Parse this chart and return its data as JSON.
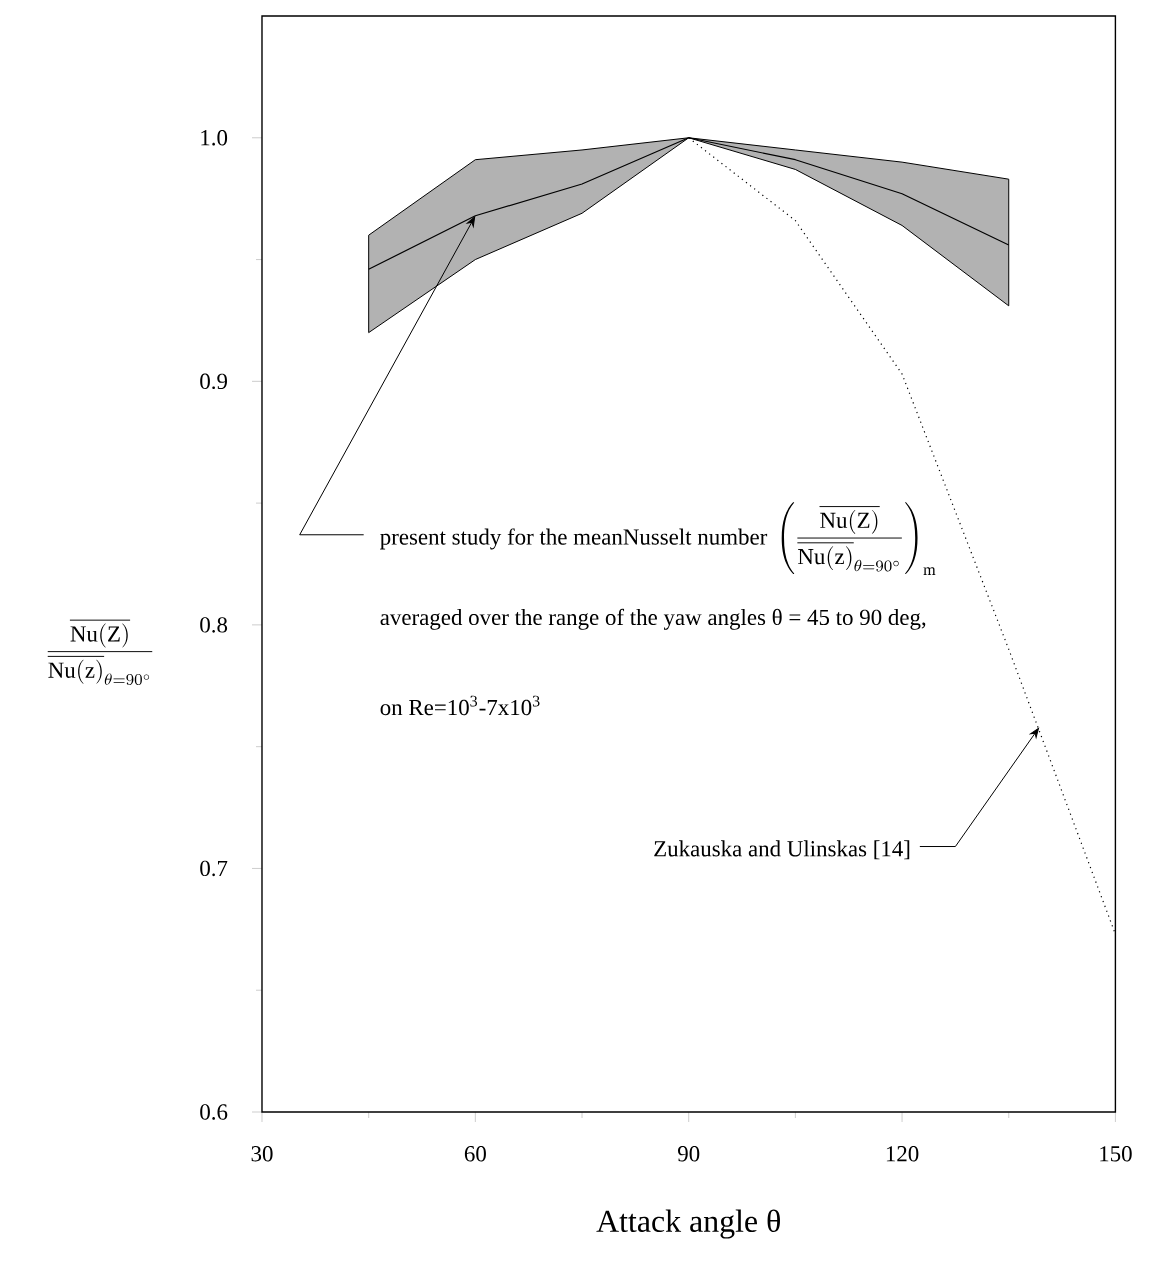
{
  "chart_data": {
    "type": "line",
    "xlabel": "Attack angle θ",
    "ylabel": "\\frac{\\overline{\\mathrm{Nu(Z)}}}{\\overline{\\mathrm{Nu(z)}}_{\\theta=90^\\circ}}",
    "xlim": [
      30,
      150
    ],
    "ylim": [
      0.6,
      1.05
    ],
    "xticks": [
      30,
      60,
      90,
      120,
      150
    ],
    "yticks": [
      0.6,
      0.7,
      0.8,
      0.9,
      {
        "value": 1.0,
        "label": "1.0"
      }
    ],
    "series": [
      {
        "x": [
          45,
          60,
          75,
          90,
          105,
          120,
          135
        ],
        "values": [
          0.946,
          0.968,
          0.981,
          1.0,
          0.991,
          0.977,
          0.956
        ],
        "lower": [
          0.92,
          0.95,
          0.969,
          1.0,
          0.987,
          0.964,
          0.931
        ],
        "upper": [
          0.96,
          0.991,
          0.995,
          1.0,
          0.995,
          0.99,
          0.983
        ],
        "color": "#000000",
        "line_style": "solid"
      },
      {
        "x": [
          90,
          105,
          120,
          135,
          150
        ],
        "values": [
          1.0,
          0.966,
          0.903,
          0.79,
          0.673
        ],
        "color": "#000000",
        "line_style": "dotted"
      }
    ],
    "annotations": [
      {
        "text": "present study for the meanNusselt number",
        "x": 60,
        "y": 0.968
      },
      "\\left(\\frac{\\overline{\\mathrm{Nu(Z)}}}{\\overline{\\mathrm{Nu(z)}}_{\\theta=90^\\circ}}\\right)_{\\mathrm{m}}",
      "averaged over the range of the yaw angles θ = 45 to 90 deg,",
      "on Re=10$^{3}$-7x10$^{3}$",
      {
        "text": "Zukauska and Ulinskas [14]",
        "x": 139.3,
        "y": 0.758
      }
    ]
  }
}
